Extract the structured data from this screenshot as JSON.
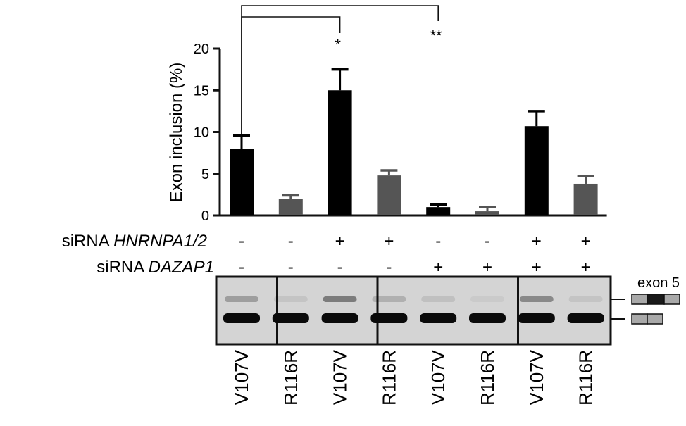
{
  "chart_data": {
    "type": "bar",
    "ylabel": "Exon inclusion (%)",
    "ylim": [
      0,
      20
    ],
    "yticks": [
      0,
      5,
      10,
      15,
      20
    ],
    "categories": [
      "V107V",
      "R116R",
      "V107V",
      "R116R",
      "V107V",
      "R116R",
      "V107V",
      "R116R"
    ],
    "values": [
      8.0,
      2.0,
      15.0,
      4.8,
      1.0,
      0.5,
      10.7,
      3.8
    ],
    "errors": [
      1.6,
      0.4,
      2.5,
      0.6,
      0.3,
      0.5,
      1.8,
      0.9
    ],
    "bar_colors": [
      "#000000",
      "#555555",
      "#000000",
      "#555555",
      "#000000",
      "#555555",
      "#000000",
      "#555555"
    ],
    "significance": [
      {
        "from": 0,
        "to": 2,
        "label": "*"
      },
      {
        "from": 0,
        "to": 4,
        "label": "**"
      }
    ],
    "conditions": [
      {
        "label": "siRNA ",
        "gene": "HNRNPA1/2",
        "marks": [
          "-",
          "-",
          "+",
          "+",
          "-",
          "-",
          "+",
          "+"
        ]
      },
      {
        "label": "siRNA ",
        "gene": "DAZAP1",
        "marks": [
          "-",
          "-",
          "-",
          "-",
          "+",
          "+",
          "+",
          "+"
        ]
      }
    ]
  },
  "gel": {
    "exon_label": "exon 5",
    "upper_band_intensity": [
      0.28,
      0.08,
      0.45,
      0.18,
      0.1,
      0.05,
      0.38,
      0.08
    ]
  },
  "colors": {
    "wildtype_bar": "#000000",
    "mutant_bar": "#555555",
    "gel_background": "#d4d4d4",
    "exon_box": "#a9a9a9",
    "exon_included": "#1a1a1a"
  }
}
